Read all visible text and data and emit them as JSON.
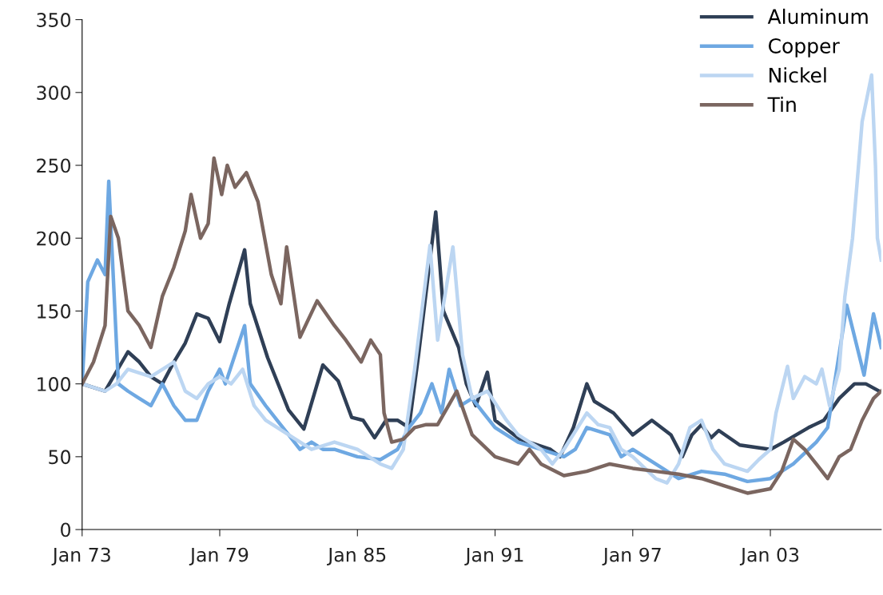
{
  "chart_data": {
    "type": "line",
    "xlim": [
      "1973-01",
      "2007-11"
    ],
    "xticks": [
      {
        "value": "1973-01",
        "label": "Jan 73"
      },
      {
        "value": "1979-01",
        "label": "Jan 79"
      },
      {
        "value": "1985-01",
        "label": "Jan 85"
      },
      {
        "value": "1991-01",
        "label": "Jan 91"
      },
      {
        "value": "1997-01",
        "label": "Jan 97"
      },
      {
        "value": "2003-01",
        "label": "Jan 03"
      }
    ],
    "ylim": [
      0,
      350
    ],
    "yticks": [
      0,
      50,
      100,
      150,
      200,
      250,
      300,
      350
    ],
    "grid": false,
    "legend": "top right",
    "line_style": "solid",
    "marker": "none",
    "series": [
      {
        "name": "Aluminum",
        "color": "#2f3f56",
        "x": [
          "1973-01",
          "1974-01",
          "1975-01",
          "1975-07",
          "1976-01",
          "1976-07",
          "1977-01",
          "1977-07",
          "1978-01",
          "1978-07",
          "1979-01",
          "1979-06",
          "1980-02",
          "1980-05",
          "1981-02",
          "1982-01",
          "1982-09",
          "1983-07",
          "1984-03",
          "1984-10",
          "1985-04",
          "1985-10",
          "1986-04",
          "1986-10",
          "1987-04",
          "1987-09",
          "1988-06",
          "1988-10",
          "1989-06",
          "1989-10",
          "1990-03",
          "1990-09",
          "1991-01",
          "1992-02",
          "1993-06",
          "1993-11",
          "1994-06",
          "1995-01",
          "1995-05",
          "1996-03",
          "1997-01",
          "1997-11",
          "1998-09",
          "1999-03",
          "1999-08",
          "2000-01",
          "2000-06",
          "2000-10",
          "2001-09",
          "2003-01",
          "2003-08",
          "2004-09",
          "2005-05",
          "2006-01",
          "2006-09",
          "2007-03",
          "2007-10"
        ],
        "values": [
          100,
          95,
          122,
          115,
          105,
          100,
          115,
          128,
          148,
          145,
          129,
          155,
          192,
          155,
          118,
          82,
          69,
          113,
          102,
          77,
          75,
          63,
          75,
          75,
          70,
          120,
          218,
          150,
          125,
          100,
          85,
          108,
          75,
          62,
          55,
          50,
          70,
          100,
          88,
          80,
          65,
          75,
          65,
          50,
          65,
          72,
          63,
          68,
          58,
          55,
          60,
          70,
          75,
          90,
          100,
          100,
          95
        ]
      },
      {
        "name": "Copper",
        "color": "#6ea8e2",
        "x": [
          "1973-01",
          "1973-04",
          "1973-09",
          "1974-01",
          "1974-03",
          "1974-08",
          "1975-01",
          "1975-07",
          "1976-01",
          "1976-07",
          "1977-01",
          "1977-07",
          "1978-01",
          "1978-07",
          "1979-01",
          "1979-04",
          "1980-02",
          "1980-05",
          "1981-01",
          "1981-07",
          "1982-01",
          "1982-07",
          "1983-01",
          "1983-07",
          "1984-01",
          "1985-01",
          "1986-01",
          "1986-10",
          "1987-04",
          "1987-10",
          "1988-04",
          "1988-09",
          "1989-01",
          "1989-07",
          "1990-01",
          "1990-07",
          "1991-01",
          "1992-01",
          "1993-01",
          "1994-01",
          "1994-07",
          "1995-01",
          "1996-01",
          "1996-07",
          "1997-01",
          "1998-01",
          "1999-01",
          "2000-01",
          "2001-01",
          "2002-01",
          "2003-01",
          "2004-01",
          "2005-01",
          "2005-07",
          "2006-05",
          "2007-02",
          "2007-07",
          "2007-11"
        ],
        "values": [
          100,
          170,
          185,
          175,
          239,
          100,
          95,
          90,
          85,
          100,
          85,
          75,
          75,
          95,
          110,
          100,
          140,
          100,
          85,
          75,
          65,
          55,
          60,
          55,
          55,
          50,
          48,
          55,
          70,
          80,
          100,
          80,
          110,
          85,
          90,
          80,
          70,
          60,
          55,
          50,
          55,
          70,
          65,
          50,
          55,
          45,
          35,
          40,
          38,
          33,
          35,
          45,
          60,
          70,
          154,
          106,
          148,
          125
        ]
      },
      {
        "name": "Nickel",
        "color": "#bcd6f2",
        "x": [
          "1973-01",
          "1974-01",
          "1974-07",
          "1975-01",
          "1976-01",
          "1977-01",
          "1977-07",
          "1978-01",
          "1978-07",
          "1979-01",
          "1979-07",
          "1980-01",
          "1980-07",
          "1981-01",
          "1982-01",
          "1983-01",
          "1984-01",
          "1985-01",
          "1986-01",
          "1986-07",
          "1987-01",
          "1987-07",
          "1988-03",
          "1988-07",
          "1989-03",
          "1989-08",
          "1990-01",
          "1990-09",
          "1991-07",
          "1992-01",
          "1993-01",
          "1993-07",
          "1994-01",
          "1995-01",
          "1995-07",
          "1996-01",
          "1996-07",
          "1997-01",
          "1998-01",
          "1998-07",
          "1999-01",
          "1999-07",
          "2000-01",
          "2000-07",
          "2001-01",
          "2002-01",
          "2002-07",
          "2003-01",
          "2003-04",
          "2003-10",
          "2004-01",
          "2004-07",
          "2005-01",
          "2005-04",
          "2005-08",
          "2006-01",
          "2006-04",
          "2006-08",
          "2007-01",
          "2007-06",
          "2007-08",
          "2007-09",
          "2007-11"
        ],
        "values": [
          100,
          95,
          100,
          110,
          105,
          115,
          95,
          90,
          100,
          105,
          100,
          110,
          85,
          75,
          65,
          55,
          60,
          55,
          45,
          42,
          55,
          110,
          195,
          130,
          194,
          120,
          90,
          95,
          75,
          65,
          55,
          45,
          55,
          80,
          72,
          70,
          55,
          50,
          35,
          32,
          45,
          70,
          75,
          55,
          45,
          40,
          48,
          55,
          80,
          112,
          90,
          105,
          100,
          110,
          85,
          110,
          160,
          200,
          280,
          312,
          250,
          200,
          185
        ]
      },
      {
        "name": "Tin",
        "color": "#7b6660",
        "x": [
          "1973-01",
          "1973-07",
          "1974-01",
          "1974-04",
          "1974-08",
          "1975-01",
          "1975-07",
          "1976-01",
          "1976-07",
          "1977-01",
          "1977-07",
          "1977-10",
          "1978-03",
          "1978-07",
          "1978-10",
          "1979-02",
          "1979-05",
          "1979-09",
          "1980-03",
          "1980-09",
          "1981-04",
          "1981-09",
          "1981-12",
          "1982-07",
          "1983-04",
          "1984-01",
          "1984-07",
          "1985-03",
          "1985-08",
          "1986-01",
          "1986-03",
          "1986-07",
          "1987-01",
          "1987-07",
          "1988-01",
          "1988-07",
          "1989-05",
          "1990-01",
          "1991-01",
          "1992-01",
          "1992-07",
          "1993-01",
          "1994-01",
          "1995-01",
          "1996-01",
          "1997-01",
          "1998-01",
          "1999-01",
          "2000-01",
          "2001-01",
          "2002-01",
          "2003-01",
          "2003-07",
          "2004-01",
          "2004-07",
          "2005-01",
          "2005-07",
          "2006-01",
          "2006-07",
          "2007-01",
          "2007-07",
          "2007-11"
        ],
        "values": [
          100,
          115,
          140,
          215,
          200,
          150,
          140,
          125,
          160,
          180,
          205,
          230,
          200,
          210,
          255,
          230,
          250,
          235,
          245,
          225,
          175,
          155,
          194,
          132,
          157,
          140,
          130,
          115,
          130,
          120,
          80,
          60,
          62,
          70,
          72,
          72,
          95,
          65,
          50,
          45,
          55,
          45,
          37,
          40,
          45,
          42,
          40,
          38,
          35,
          30,
          25,
          28,
          40,
          62,
          55,
          45,
          35,
          50,
          55,
          75,
          90,
          95
        ]
      }
    ]
  }
}
